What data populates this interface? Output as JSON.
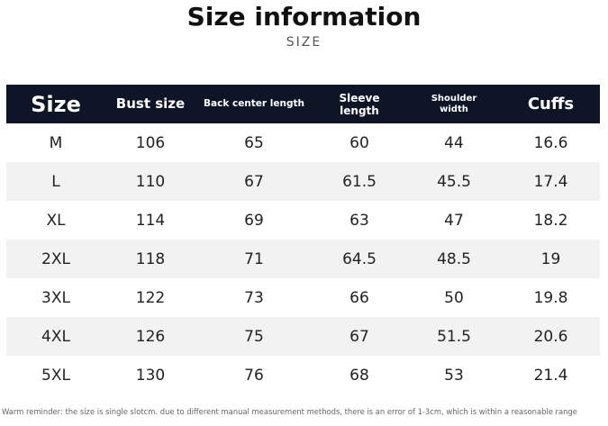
{
  "header": {
    "title": "Size information",
    "subtitle": "SIZE"
  },
  "table": {
    "columns": [
      "Size",
      "Bust size",
      "Back center length",
      "Sleeve length",
      "Shoulder width",
      "Cuffs"
    ],
    "rows": [
      [
        "M",
        106,
        65,
        60,
        44,
        16.6
      ],
      [
        "L",
        110,
        67,
        61.5,
        45.5,
        17.4
      ],
      [
        "XL",
        114,
        69,
        63,
        47,
        18.2
      ],
      [
        "2XL",
        118,
        71,
        64.5,
        48.5,
        19
      ],
      [
        "3XL",
        122,
        73,
        66,
        50,
        19.8
      ],
      [
        "4XL",
        126,
        75,
        67,
        51.5,
        20.6
      ],
      [
        "5XL",
        130,
        76,
        68,
        53,
        21.4
      ]
    ]
  },
  "footer": {
    "note": "Warm reminder: the size is single slotcm. due to different manual measurement methods, there is an error of 1-3cm, which is within a reasonable range"
  }
}
